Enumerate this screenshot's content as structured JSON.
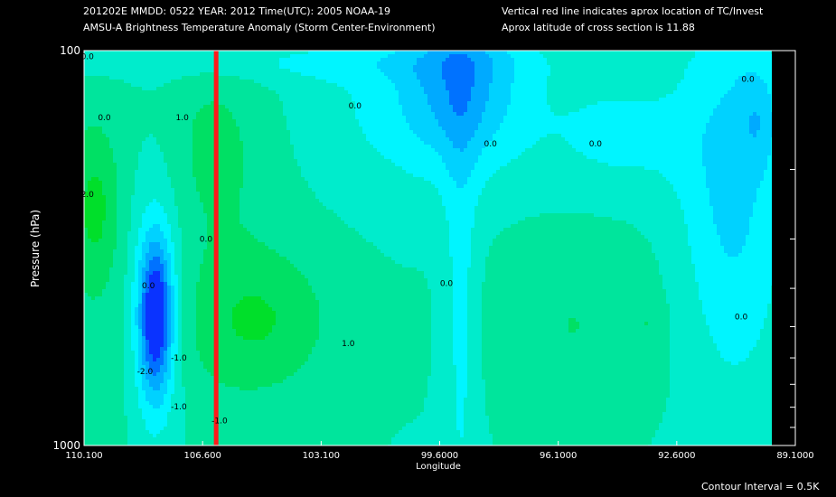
{
  "header": {
    "line1": "201202E  MMDD: 0522 YEAR: 2012 Time(UTC): 2005 NOAA-19",
    "line2": "AMSU-A Brightness Temperature Anomaly (Storm Center-Environment)",
    "note1": "Vertical red line indicates aprox location of TC/Invest",
    "note2": "Aprox latitude of cross section is 11.88"
  },
  "footer": {
    "contour_interval": "Contour Interval = 0.5K"
  },
  "chart_data": {
    "type": "heatmap",
    "title": "AMSU-A Brightness Temperature Anomaly (Storm Center-Environment)",
    "xlabel": "Longitude",
    "ylabel": "Pressure (hPa)",
    "x_reversed": true,
    "xlim": [
      110.1,
      89.1
    ],
    "ylim": [
      1000,
      100
    ],
    "y_scale": "log",
    "x_tick_labels": [
      "110.100",
      "106.600",
      "103.100",
      "99.6000",
      "96.1000",
      "92.6000",
      "89.1000"
    ],
    "x_ticks": [
      110.1,
      106.6,
      103.1,
      99.6,
      96.1,
      92.6,
      89.1
    ],
    "y_tick_labels": [
      "100",
      "1000"
    ],
    "y_ticks": [
      100,
      1000
    ],
    "tc_longitude": 106.2,
    "tc_line_color": "#ff1a1a",
    "contour_interval": 0.5,
    "contour_labels": [
      {
        "text": "0.0",
        "lon": 110.0,
        "p": 105
      },
      {
        "text": "0.0",
        "lon": 109.5,
        "p": 150
      },
      {
        "text": "1.0",
        "lon": 107.2,
        "p": 150
      },
      {
        "text": "0.0",
        "lon": 102.1,
        "p": 140
      },
      {
        "text": "0.0",
        "lon": 98.1,
        "p": 175
      },
      {
        "text": "0.0",
        "lon": 95.0,
        "p": 175
      },
      {
        "text": "0.0",
        "lon": 90.5,
        "p": 120
      },
      {
        "text": "2.0",
        "lon": 110.0,
        "p": 235
      },
      {
        "text": "0.0",
        "lon": 106.5,
        "p": 305
      },
      {
        "text": "0.0",
        "lon": 108.2,
        "p": 400
      },
      {
        "text": "0.0",
        "lon": 99.4,
        "p": 395
      },
      {
        "text": "1.0",
        "lon": 102.3,
        "p": 560
      },
      {
        "text": "-1.0",
        "lon": 107.3,
        "p": 610
      },
      {
        "text": "-2.0",
        "lon": 108.3,
        "p": 660
      },
      {
        "text": "-1.0",
        "lon": 107.3,
        "p": 810
      },
      {
        "text": "-1.0",
        "lon": 106.1,
        "p": 880
      },
      {
        "text": "0.0",
        "lon": 90.7,
        "p": 480
      }
    ]
  }
}
